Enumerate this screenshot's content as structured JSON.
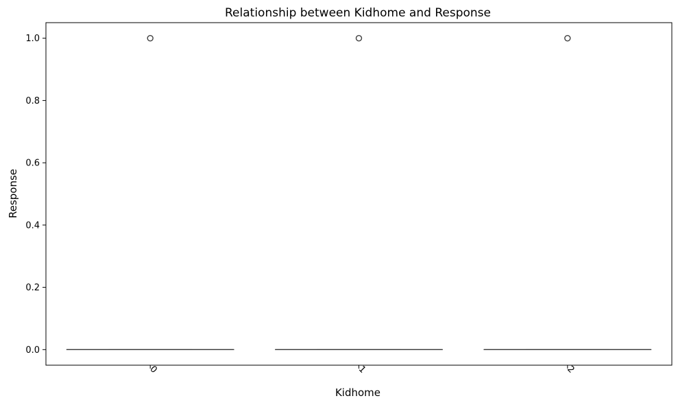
{
  "chart_data": {
    "type": "box",
    "title": "Relationship between Kidhome and Response",
    "xlabel": "Kidhome",
    "ylabel": "Response",
    "categories": [
      "0",
      "1",
      "2"
    ],
    "ylim": [
      -0.05,
      1.05
    ],
    "yticks": [
      0.0,
      0.2,
      0.4,
      0.6,
      0.8,
      1.0
    ],
    "ytick_labels": [
      "0.0",
      "0.2",
      "0.4",
      "0.6",
      "0.8",
      "1.0"
    ],
    "xtick_rotation": 45,
    "grid": false,
    "legend": "none",
    "boxes": [
      {
        "category": "0",
        "min": 0,
        "q1": 0,
        "median": 0,
        "q3": 0,
        "max": 0,
        "outliers": [
          1
        ]
      },
      {
        "category": "1",
        "min": 0,
        "q1": 0,
        "median": 0,
        "q3": 0,
        "max": 0,
        "outliers": [
          1
        ]
      },
      {
        "category": "2",
        "min": 0,
        "q1": 0,
        "median": 0,
        "q3": 0,
        "max": 0,
        "outliers": [
          1
        ]
      }
    ],
    "colors": {
      "box_line": "#3f3f3f",
      "outlier_edge": "#3f3f3f",
      "axes": "#000000"
    }
  }
}
